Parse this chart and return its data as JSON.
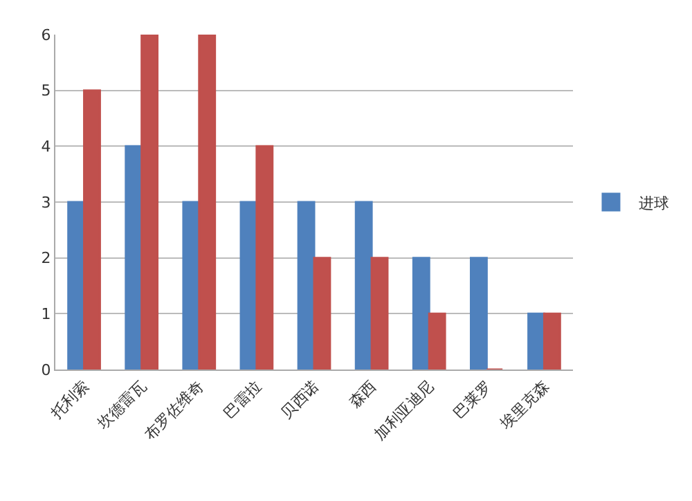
{
  "chart_data": {
    "type": "bar",
    "categories": [
      "托利索",
      "坎德雷瓦",
      "布罗佐维奇",
      "巴雷拉",
      "贝西诺",
      "森西",
      "加利亚迪尼",
      "巴莱罗",
      "埃里克森"
    ],
    "series": [
      {
        "name": "进球",
        "color": "#4f81bd",
        "values": [
          3,
          4,
          3,
          3,
          3,
          3,
          2,
          2,
          1
        ]
      },
      {
        "color": "#c0504d",
        "values": [
          5,
          6,
          6,
          4,
          2,
          2,
          1,
          0,
          1
        ]
      }
    ],
    "ylim": [
      0,
      6
    ],
    "yticks": [
      0,
      1,
      2,
      3,
      4,
      5,
      6
    ],
    "grid": "y",
    "legend": "right"
  }
}
